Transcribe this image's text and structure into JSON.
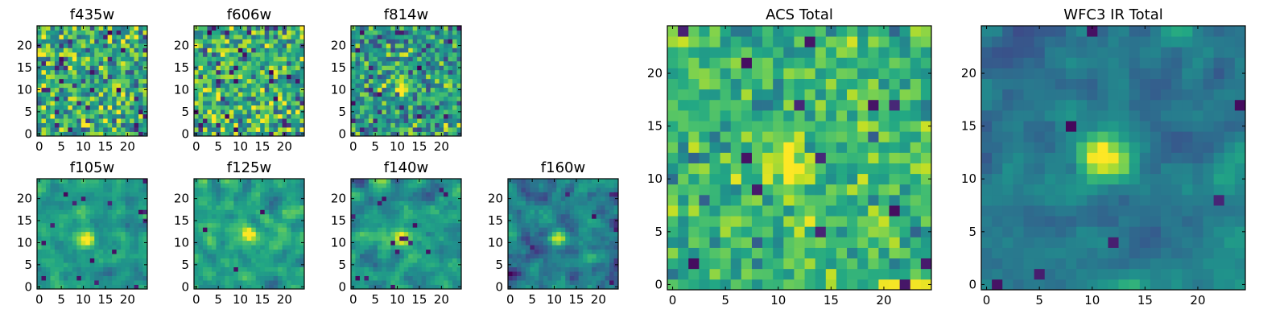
{
  "chart_data": [
    {
      "type": "heatmap",
      "title": "f435w",
      "xlim": [
        0,
        24
      ],
      "ylim": [
        0,
        24
      ],
      "xticks": [
        0,
        5,
        10,
        15,
        20
      ],
      "yticks": [
        0,
        5,
        10,
        15,
        20
      ],
      "colormap": "viridis",
      "source": null,
      "note": "noise"
    },
    {
      "type": "heatmap",
      "title": "f606w",
      "xlim": [
        0,
        24
      ],
      "ylim": [
        0,
        24
      ],
      "xticks": [
        0,
        5,
        10,
        15,
        20
      ],
      "yticks": [
        0,
        5,
        10,
        15,
        20
      ],
      "colormap": "viridis",
      "source": null
    },
    {
      "type": "heatmap",
      "title": "f814w",
      "xlim": [
        0,
        24
      ],
      "ylim": [
        0,
        24
      ],
      "xticks": [
        0,
        5,
        10,
        15,
        20
      ],
      "yticks": [
        0,
        5,
        10,
        15,
        20
      ],
      "colormap": "viridis",
      "source": [
        11,
        11
      ]
    },
    {
      "type": "heatmap",
      "title": "f105w",
      "xlim": [
        0,
        24
      ],
      "ylim": [
        0,
        24
      ],
      "xticks": [
        0,
        5,
        10,
        15,
        20
      ],
      "yticks": [
        0,
        5,
        10,
        15,
        20
      ],
      "colormap": "viridis",
      "source": [
        11,
        11
      ]
    },
    {
      "type": "heatmap",
      "title": "f125w",
      "xlim": [
        0,
        24
      ],
      "ylim": [
        0,
        24
      ],
      "xticks": [
        0,
        5,
        10,
        15,
        20
      ],
      "yticks": [
        0,
        5,
        10,
        15,
        20
      ],
      "colormap": "viridis",
      "source": [
        12,
        12
      ]
    },
    {
      "type": "heatmap",
      "title": "f140w",
      "xlim": [
        0,
        24
      ],
      "ylim": [
        0,
        24
      ],
      "xticks": [
        0,
        5,
        10,
        15,
        20
      ],
      "yticks": [
        0,
        5,
        10,
        15,
        20
      ],
      "colormap": "viridis",
      "source": [
        11,
        11
      ]
    },
    {
      "type": "heatmap",
      "title": "f160w",
      "xlim": [
        0,
        24
      ],
      "ylim": [
        0,
        24
      ],
      "xticks": [
        0,
        5,
        10,
        15,
        20
      ],
      "yticks": [
        0,
        5,
        10,
        15,
        20
      ],
      "colormap": "viridis",
      "source": [
        11,
        11
      ]
    },
    {
      "type": "heatmap",
      "title": "ACS Total",
      "xlim": [
        0,
        24
      ],
      "ylim": [
        0,
        24
      ],
      "xticks": [
        0,
        5,
        10,
        15,
        20
      ],
      "yticks": [
        0,
        5,
        10,
        15,
        20
      ],
      "colormap": "viridis",
      "source": [
        11,
        11
      ]
    },
    {
      "type": "heatmap",
      "title": "WFC3 IR Total",
      "xlim": [
        0,
        24
      ],
      "ylim": [
        0,
        24
      ],
      "xticks": [
        0,
        5,
        10,
        15,
        20
      ],
      "yticks": [
        0,
        5,
        10,
        15,
        20
      ],
      "colormap": "viridis",
      "source": [
        11,
        12
      ]
    }
  ],
  "colors": {
    "viridis_low": "#440154",
    "viridis_mid": "#21918c",
    "viridis_high": "#fde725",
    "axis": "#000000"
  }
}
